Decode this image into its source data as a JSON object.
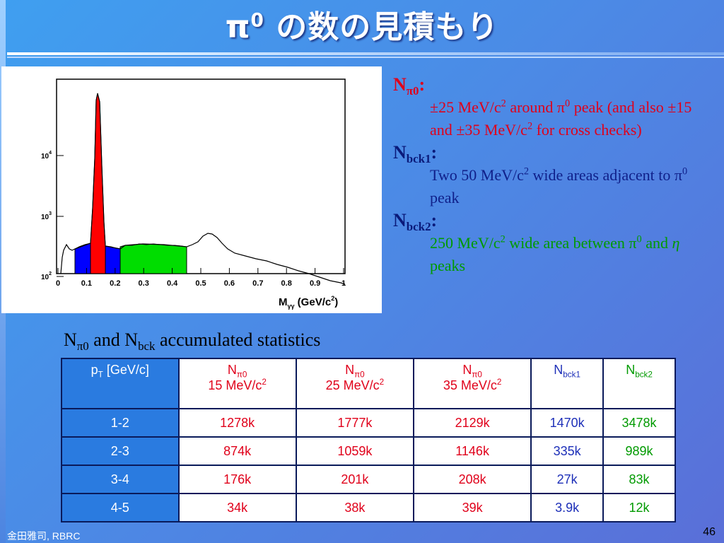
{
  "title": {
    "prefix": "π",
    "sup": "0",
    "rest": " の数の見積もり"
  },
  "notes": {
    "n0_label": "N",
    "n0_sub": "π0",
    "colon": ":",
    "n0_text_1": "±25 MeV/c",
    "n0_text_2": " around π",
    "n0_text_3": " peak (and also ±15 and ±35 MeV/c",
    "n0_text_4": " for cross checks)",
    "nbck1_label": "N",
    "nbck1_sub": "bck1",
    "nbck1_text_1": "Two 50 MeV/c",
    "nbck1_text_2": " wide areas adjacent to π",
    "nbck1_text_3": " peak",
    "nbck2_label": "N",
    "nbck2_sub": "bck2",
    "nbck2_text_1": "250 MeV/c",
    "nbck2_text_2": " wide area between π",
    "nbck2_text_3": " and ",
    "nbck2_eta": "η",
    "nbck2_text_4": " peaks",
    "sup2": "2",
    "sup0": "0"
  },
  "caption": {
    "n": "N",
    "pi0": "π0",
    "and": " and N",
    "bck": "bck",
    "rest": " accumulated statistics"
  },
  "table": {
    "headers": [
      {
        "main": "p",
        "sub": "T",
        "after": "  [GeV/c]"
      },
      {
        "main": "N",
        "sub": "π0",
        "line2": "15 MeV/c",
        "sup": "2"
      },
      {
        "main": "N",
        "sub": "π0",
        "line2": "25 MeV/c",
        "sup": "2"
      },
      {
        "main": "N",
        "sub": "π0",
        "line2": "35 MeV/c",
        "sup": "2"
      },
      {
        "main": "N",
        "sub": "bck1"
      },
      {
        "main": "N",
        "sub": "bck2"
      }
    ],
    "rows": [
      [
        "1-2",
        "1278k",
        "1777k",
        "2129k",
        "1470k",
        "3478k"
      ],
      [
        "2-3",
        "874k",
        "1059k",
        "1146k",
        "335k",
        "989k"
      ],
      [
        "3-4",
        "176k",
        "201k",
        "208k",
        "27k",
        "83k"
      ],
      [
        "4-5",
        "34k",
        "38k",
        "39k",
        "3.9k",
        "12k"
      ]
    ]
  },
  "plot": {
    "xlabel_main": "M",
    "xlabel_sub": "γγ",
    "xlabel_unit": " (GeV/c",
    "xlabel_sup": "2",
    "xlabel_close": ")",
    "xticks": [
      "0",
      "0.1",
      "0.2",
      "0.3",
      "0.4",
      "0.5",
      "0.6",
      "0.7",
      "0.8",
      "0.9",
      "1"
    ],
    "yticks": [
      {
        "base": "10",
        "exp": "2"
      },
      {
        "base": "10",
        "exp": "3"
      },
      {
        "base": "10",
        "exp": "4"
      }
    ],
    "colors": {
      "pi0_window": "#ff0000",
      "bck1": "#0000ff",
      "bck2": "#00dd00"
    }
  },
  "footer": {
    "author": "金田雅司, RBRC",
    "page": "46"
  }
}
